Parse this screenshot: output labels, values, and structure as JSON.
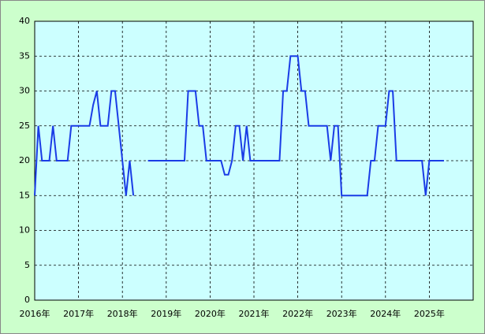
{
  "chart_data": {
    "type": "line",
    "categories": [
      "2016年",
      null,
      null,
      null,
      null,
      null,
      null,
      null,
      null,
      null,
      null,
      null,
      "2017年",
      null,
      null,
      null,
      null,
      null,
      null,
      null,
      null,
      null,
      null,
      null,
      "2018年",
      null,
      null,
      null,
      null,
      null,
      null,
      null,
      null,
      null,
      null,
      null,
      "2019年",
      null,
      null,
      null,
      null,
      null,
      null,
      null,
      null,
      null,
      null,
      null,
      "2020年",
      null,
      null,
      null,
      null,
      null,
      null,
      null,
      null,
      null,
      null,
      null,
      "2021年",
      null,
      null,
      null,
      null,
      null,
      null,
      null,
      null,
      null,
      null,
      null,
      "2022年",
      null,
      null,
      null,
      null,
      null,
      null,
      null,
      null,
      null,
      null,
      null,
      "2023年",
      null,
      null,
      null,
      null,
      null,
      null,
      null,
      null,
      null,
      null,
      null,
      "2024年",
      null,
      null,
      null,
      null,
      null,
      null,
      null,
      null,
      null,
      null,
      null,
      "2025年",
      null,
      null,
      null,
      null,
      null,
      null,
      null,
      null,
      null,
      null,
      null
    ],
    "series": [
      {
        "color": "#1a3ce6",
        "values": [
          15,
          25,
          20,
          20,
          20,
          25,
          20,
          20,
          20,
          20,
          25,
          25,
          25,
          25,
          25,
          25,
          28,
          30,
          25,
          25,
          25,
          30,
          30,
          25,
          20,
          15,
          20,
          15,
          null,
          null,
          null,
          20,
          20,
          20,
          20,
          20,
          20,
          20,
          20,
          20,
          20,
          20,
          30,
          30,
          30,
          25,
          25,
          20,
          20,
          20,
          20,
          20,
          18,
          18,
          20,
          25,
          25,
          20,
          25,
          20,
          20,
          20,
          20,
          20,
          20,
          20,
          20,
          20,
          30,
          30,
          35,
          35,
          35,
          30,
          30,
          25,
          25,
          25,
          25,
          25,
          25,
          20,
          25,
          25,
          15,
          15,
          15,
          15,
          15,
          15,
          15,
          15,
          20,
          20,
          25,
          25,
          25,
          30,
          30,
          20,
          20,
          20,
          20,
          20,
          20,
          20,
          20,
          15,
          20,
          20,
          20,
          20,
          20,
          null,
          null,
          null,
          null,
          null,
          null,
          null
        ]
      }
    ],
    "ylim": [
      0,
      40
    ],
    "yticks": [
      0,
      5,
      10,
      15,
      20,
      25,
      30,
      35,
      40
    ],
    "grid": true
  }
}
